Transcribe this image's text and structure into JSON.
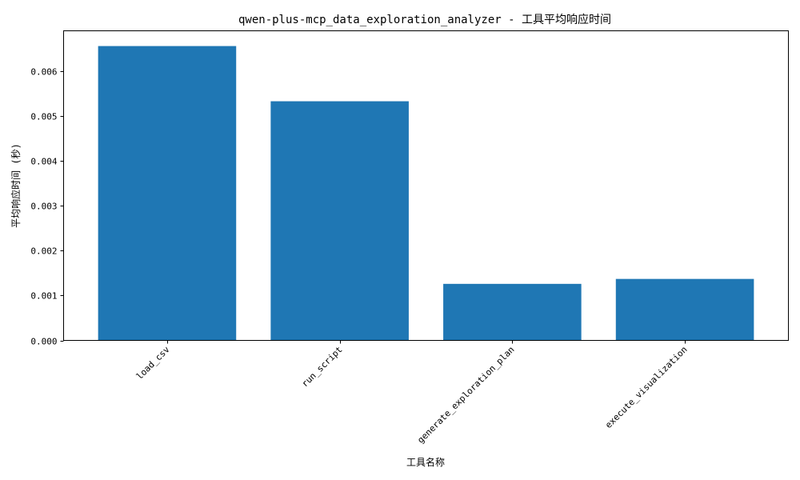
{
  "chart_data": {
    "type": "bar",
    "title": "qwen-plus-mcp_data_exploration_analyzer - 工具平均响应时间",
    "xlabel": "工具名称",
    "ylabel": "平均响应时间 (秒)",
    "categories": [
      "load_csv",
      "run_script",
      "generate_exploration_plan",
      "execute_visualization"
    ],
    "values": [
      0.00656,
      0.00533,
      0.00126,
      0.00137
    ],
    "ylim": [
      0,
      0.0069
    ],
    "yticks": [
      0.0,
      0.001,
      0.002,
      0.003,
      0.004,
      0.005,
      0.006
    ],
    "ytick_labels": [
      "0.000",
      "0.001",
      "0.002",
      "0.003",
      "0.004",
      "0.005",
      "0.006"
    ],
    "grid": false,
    "colors": {
      "bar": "#1f77b4",
      "axes": "#000000",
      "background": "#ffffff"
    }
  }
}
